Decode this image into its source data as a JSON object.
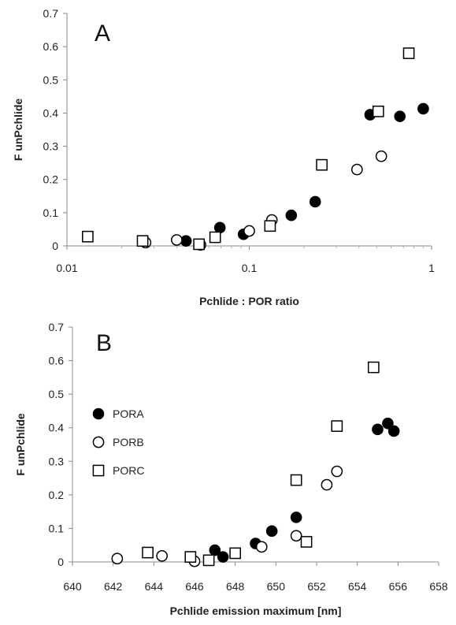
{
  "chart_data": [
    {
      "type": "scatter",
      "panel_label": "A",
      "xlabel": "Pchlide : POR ratio",
      "ylabel": "F unPchlide",
      "xscale": "log",
      "xlim": [
        0.01,
        1
      ],
      "ylim": [
        0,
        0.7
      ],
      "xticks": [
        0.01,
        0.1,
        1
      ],
      "xtick_labels": [
        "0.01",
        "0.1",
        "1"
      ],
      "yticks": [
        0,
        0.1,
        0.2,
        0.3,
        0.4,
        0.5,
        0.6,
        0.7
      ],
      "ytick_labels": [
        "0",
        "0.1",
        "0.2",
        "0.3",
        "0.4",
        "0.5",
        "0.6",
        "0.7"
      ],
      "grid": false,
      "series": [
        {
          "name": "PORA",
          "marker": "filled-circle",
          "points": [
            [
              0.045,
              0.015
            ],
            [
              0.069,
              0.055
            ],
            [
              0.093,
              0.035
            ],
            [
              0.17,
              0.092
            ],
            [
              0.23,
              0.133
            ],
            [
              0.46,
              0.395
            ],
            [
              0.67,
              0.39
            ],
            [
              0.9,
              0.413
            ]
          ]
        },
        {
          "name": "PORB",
          "marker": "open-circle",
          "points": [
            [
              0.027,
              0.01
            ],
            [
              0.04,
              0.018
            ],
            [
              0.054,
              0.003
            ],
            [
              0.1,
              0.045
            ],
            [
              0.133,
              0.078
            ],
            [
              0.39,
              0.23
            ],
            [
              0.53,
              0.27
            ]
          ]
        },
        {
          "name": "PORC",
          "marker": "open-square",
          "points": [
            [
              0.013,
              0.028
            ],
            [
              0.026,
              0.015
            ],
            [
              0.053,
              0.005
            ],
            [
              0.065,
              0.026
            ],
            [
              0.13,
              0.06
            ],
            [
              0.25,
              0.244
            ],
            [
              0.51,
              0.405
            ],
            [
              0.75,
              0.58
            ]
          ]
        }
      ]
    },
    {
      "type": "scatter",
      "panel_label": "B",
      "xlabel": "Pchlide emission maximum [nm]",
      "ylabel": "F unPchlide",
      "xlim": [
        640,
        658
      ],
      "ylim": [
        0,
        0.7
      ],
      "xticks": [
        640,
        642,
        644,
        646,
        648,
        650,
        652,
        654,
        656,
        658
      ],
      "xtick_labels": [
        "640",
        "642",
        "644",
        "646",
        "648",
        "650",
        "652",
        "654",
        "656",
        "658"
      ],
      "yticks": [
        0,
        0.1,
        0.2,
        0.3,
        0.4,
        0.5,
        0.6,
        0.7
      ],
      "ytick_labels": [
        "0",
        "0.1",
        "0.2",
        "0.3",
        "0.4",
        "0.5",
        "0.6",
        "0.7"
      ],
      "grid": false,
      "legend": {
        "placement": "left",
        "entries": [
          {
            "label": "PORA",
            "marker": "filled-circle"
          },
          {
            "label": "PORB",
            "marker": "open-circle"
          },
          {
            "label": "PORC",
            "marker": "open-square"
          }
        ]
      },
      "series": [
        {
          "name": "PORA",
          "marker": "filled-circle",
          "points": [
            [
              647.0,
              0.035
            ],
            [
              647.4,
              0.015
            ],
            [
              649.0,
              0.055
            ],
            [
              649.8,
              0.092
            ],
            [
              651.0,
              0.133
            ],
            [
              655.0,
              0.395
            ],
            [
              655.5,
              0.413
            ],
            [
              655.8,
              0.39
            ]
          ]
        },
        {
          "name": "PORB",
          "marker": "open-circle",
          "points": [
            [
              642.2,
              0.01
            ],
            [
              644.4,
              0.018
            ],
            [
              646.0,
              0.002
            ],
            [
              649.3,
              0.045
            ],
            [
              651.0,
              0.078
            ],
            [
              652.5,
              0.23
            ],
            [
              653.0,
              0.27
            ]
          ]
        },
        {
          "name": "PORC",
          "marker": "open-square",
          "points": [
            [
              643.7,
              0.028
            ],
            [
              645.8,
              0.015
            ],
            [
              646.7,
              0.005
            ],
            [
              648.0,
              0.026
            ],
            [
              651.5,
              0.06
            ],
            [
              651.0,
              0.244
            ],
            [
              653.0,
              0.405
            ],
            [
              654.8,
              0.58
            ]
          ]
        }
      ]
    }
  ]
}
